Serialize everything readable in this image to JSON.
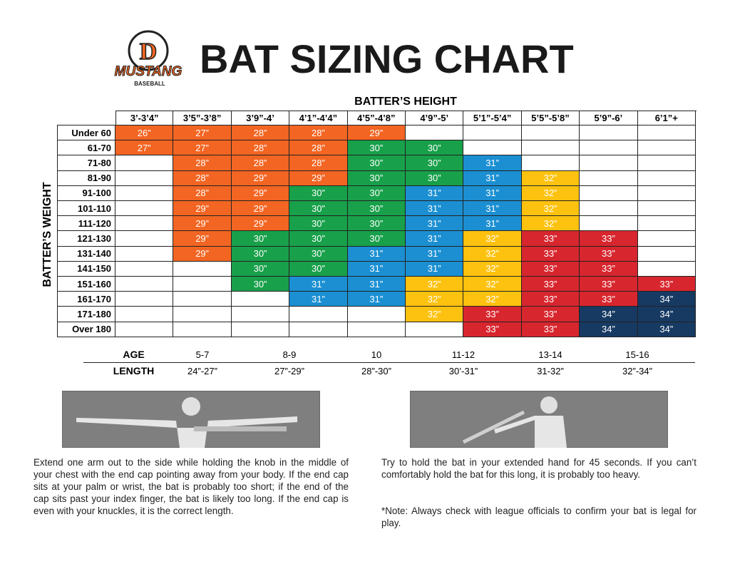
{
  "header": {
    "logo_mark": "D",
    "logo_name": "MUSTANG",
    "logo_sub": "BASEBALL",
    "title": "BAT SIZING CHART"
  },
  "table": {
    "column_title": "BATTER’S HEIGHT",
    "row_title": "BATTER’S WEIGHT",
    "columns": [
      "3’-3’4”",
      "3’5”-3’8”",
      "3’9”-4’",
      "4’1”-4’4”",
      "4’5”-4’8”",
      "4’9”-5’",
      "5’1”-5’4”",
      "5’5”-5’8”",
      "5’9”-6’",
      "6’1”+"
    ],
    "row_labels": [
      "Under 60",
      "61-70",
      "71-80",
      "81-90",
      "91-100",
      "101-110",
      "111-120",
      "121-130",
      "131-140",
      "141-150",
      "151-160",
      "161-170",
      "171-180",
      "Over 180"
    ],
    "rows": [
      [
        "26”",
        "27”",
        "28”",
        "28”",
        "29”",
        null,
        null,
        null,
        null,
        null
      ],
      [
        "27”",
        "27”",
        "28”",
        "28”",
        "30”",
        "30”",
        null,
        null,
        null,
        null
      ],
      [
        null,
        "28”",
        "28”",
        "28”",
        "30”",
        "30”",
        "31”",
        null,
        null,
        null
      ],
      [
        null,
        "28”",
        "29”",
        "29”",
        "30”",
        "30”",
        "31”",
        "32”",
        null,
        null
      ],
      [
        null,
        "28”",
        "29”",
        "30”",
        "30”",
        "31”",
        "31”",
        "32”",
        null,
        null
      ],
      [
        null,
        "29”",
        "29”",
        "30”",
        "30”",
        "31”",
        "31”",
        "32”",
        null,
        null
      ],
      [
        null,
        "29”",
        "29”",
        "30”",
        "30”",
        "31”",
        "31”",
        "32”",
        null,
        null
      ],
      [
        null,
        "29”",
        "30”",
        "30”",
        "30”",
        "31”",
        "32”",
        "33”",
        "33”",
        null
      ],
      [
        null,
        "29”",
        "30”",
        "30”",
        "31”",
        "31”",
        "32”",
        "33”",
        "33”",
        null
      ],
      [
        null,
        null,
        "30”",
        "30”",
        "31”",
        "31”",
        "32”",
        "33”",
        "33”",
        null
      ],
      [
        null,
        null,
        "30”",
        "31”",
        "31”",
        "32”",
        "32”",
        "33”",
        "33”",
        "33”"
      ],
      [
        null,
        null,
        null,
        "31”",
        "31”",
        "32”",
        "32”",
        "33”",
        "33”",
        "34”"
      ],
      [
        null,
        null,
        null,
        null,
        null,
        "32”",
        "33”",
        "33”",
        "34”",
        "34”"
      ],
      [
        null,
        null,
        null,
        null,
        null,
        null,
        "33”",
        "33”",
        "34”",
        "34”"
      ]
    ],
    "colors": {
      "26”": "#f26522",
      "27”": "#f26522",
      "28”": "#f26522",
      "29”": "#f26522",
      "30”": "#18a04a",
      "31”": "#1b8fd2",
      "32”": "#fdc20f",
      "33”": "#d7262e",
      "34”": "#173a63"
    }
  },
  "age_table": {
    "age_label": "AGE",
    "length_label": "LENGTH",
    "ages": [
      "5-7",
      "8-9",
      "10",
      "11-12",
      "13-14",
      "15-16"
    ],
    "lengths": [
      "24”-27”",
      "27”-29”",
      "28”-30”",
      "30’-31”",
      "31-32”",
      "32”-34”"
    ]
  },
  "instructions": {
    "left": "Extend one arm out to the side while holding the knob in the middle of your chest with the end cap pointing away from your body. If the end cap sits at your palm or wrist, the bat is probably too short; if the end of the cap sits past your index finger, the bat is likely too long. If the end cap is even with your knuckles, it is the correct length.",
    "right": "Try to hold the bat in your extended hand for 45 seconds. If you can’t comfortably hold the bat for this long, it is probably too heavy.",
    "note": "*Note: Always check with league officials to confirm your bat is legal for play."
  }
}
